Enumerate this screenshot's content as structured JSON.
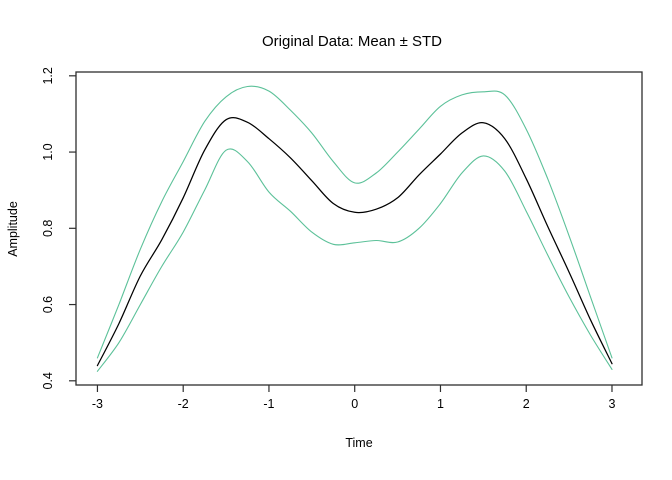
{
  "chart_data": {
    "type": "line",
    "title": "Original Data: Mean ± STD",
    "xlabel": "Time",
    "ylabel": "Amplitude",
    "xlim": [
      -3.25,
      3.35
    ],
    "ylim": [
      0.389,
      1.21
    ],
    "grid": false,
    "legend": "none",
    "background_color": "#ffffff",
    "box_color": "#2e2e2e",
    "x_ticks": {
      "values": [
        -3,
        -2,
        -1,
        0,
        1,
        2,
        3
      ],
      "labels": [
        "-3",
        "-2",
        "-1",
        "0",
        "1",
        "2",
        "3"
      ]
    },
    "y_ticks": {
      "values": [
        0.4,
        0.6,
        0.8,
        1.0,
        1.2
      ],
      "labels": [
        "0.4",
        "0.6",
        "0.8",
        "1.0",
        "1.2"
      ]
    },
    "x": [
      -3,
      -2.75,
      -2.5,
      -2.25,
      -2,
      -1.75,
      -1.5,
      -1.25,
      -1,
      -0.75,
      -0.5,
      -0.25,
      0,
      0.25,
      0.5,
      0.75,
      1,
      1.25,
      1.5,
      1.75,
      2,
      2.25,
      2.5,
      2.75,
      3
    ],
    "series": [
      {
        "name": "mean_plus_std",
        "color": "#5cc199",
        "width": 1.1,
        "values": [
          0.46,
          0.6,
          0.745,
          0.87,
          0.975,
          1.08,
          1.145,
          1.172,
          1.16,
          1.11,
          1.05,
          0.975,
          0.919,
          0.945,
          1.0,
          1.06,
          1.12,
          1.15,
          1.158,
          1.15,
          1.06,
          0.93,
          0.78,
          0.62,
          0.46
        ]
      },
      {
        "name": "mean",
        "color": "#000000",
        "width": 1.25,
        "values": [
          0.44,
          0.55,
          0.675,
          0.77,
          0.88,
          1.005,
          1.085,
          1.078,
          1.035,
          0.985,
          0.925,
          0.865,
          0.842,
          0.85,
          0.88,
          0.94,
          0.995,
          1.05,
          1.077,
          1.035,
          0.93,
          0.805,
          0.685,
          0.56,
          0.445
        ]
      },
      {
        "name": "mean_minus_std",
        "color": "#5cc199",
        "width": 1.1,
        "values": [
          0.425,
          0.5,
          0.6,
          0.7,
          0.79,
          0.9,
          1.005,
          0.975,
          0.895,
          0.845,
          0.79,
          0.758,
          0.762,
          0.768,
          0.764,
          0.8,
          0.865,
          0.945,
          0.99,
          0.95,
          0.845,
          0.73,
          0.62,
          0.52,
          0.43
        ]
      }
    ]
  }
}
